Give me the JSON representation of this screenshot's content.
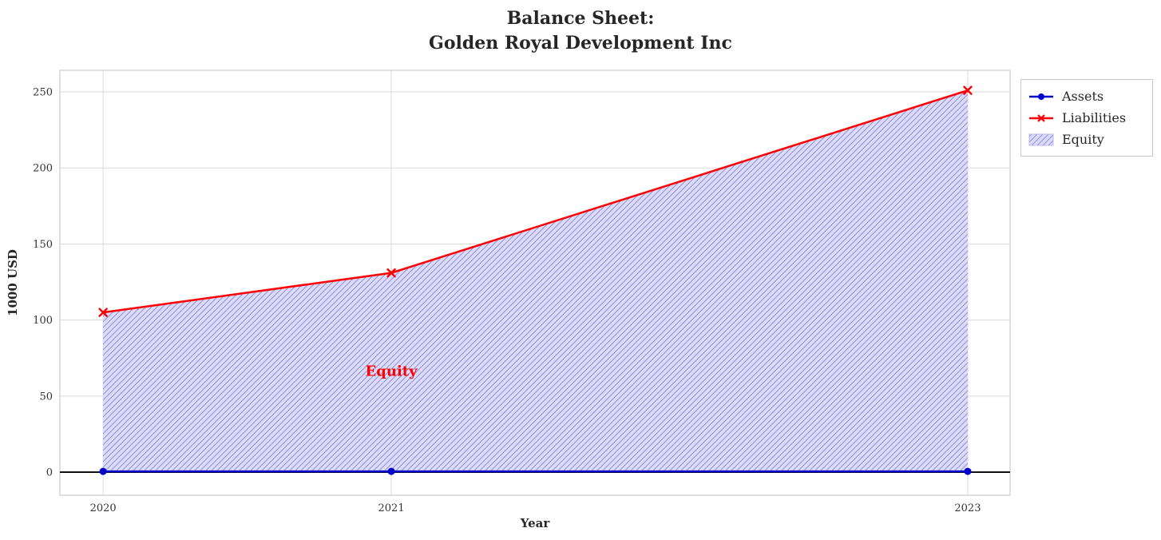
{
  "chart_data": {
    "type": "area",
    "title": "Balance Sheet:\nGolden Royal Development Inc",
    "xlabel": "Year",
    "ylabel": "1000 USD",
    "x": [
      2020,
      2021,
      2023
    ],
    "x_tick_labels": [
      "2020",
      "2021",
      "2023"
    ],
    "y_ticks": [
      0,
      50,
      100,
      150,
      200,
      250
    ],
    "xlim": [
      2019.85,
      2023.147
    ],
    "ylim": [
      -15.2,
      264.2
    ],
    "grid": true,
    "series": [
      {
        "name": "Assets",
        "color": "#0000cd",
        "marker": "circle",
        "line_width": 2.5,
        "values": [
          0.5,
          0.5,
          0.5
        ]
      },
      {
        "name": "Liabilities",
        "color": "#ff0000",
        "marker": "x",
        "line_width": 2.5,
        "values": [
          105,
          131,
          251
        ]
      }
    ],
    "area": {
      "name": "Equity",
      "from": 0,
      "to_series": "Liabilities",
      "fill": "#dddcf6",
      "hatch": "////",
      "hatch_color": "#8f8fe0"
    },
    "baseline": {
      "y": 0,
      "color": "#000000"
    },
    "annotation": {
      "text": "Equity",
      "x": 2021,
      "y": 66,
      "color": "#ff0000"
    },
    "legend": {
      "position": "upper-right-outside",
      "items": [
        "Assets",
        "Liabilities",
        "Equity"
      ]
    }
  }
}
